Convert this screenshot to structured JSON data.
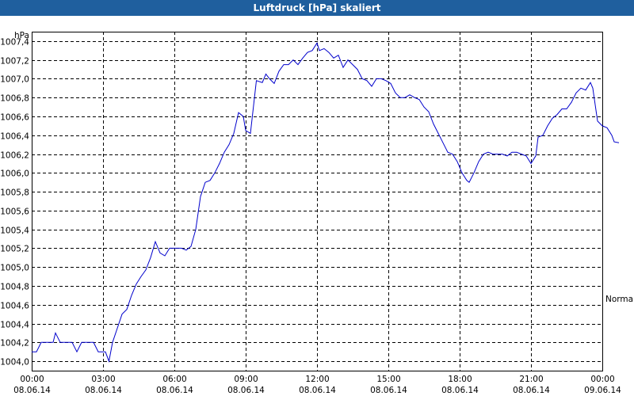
{
  "window": {
    "title": "Luftdruck [hPa] skaliert"
  },
  "chart_data": {
    "type": "line",
    "title": "Luftdruck [hPa] skaliert",
    "ylabel": "hPa",
    "series_label_right": "Normal",
    "ylim": [
      1003.9,
      1007.5
    ],
    "xlim_hours": [
      0,
      24
    ],
    "y_ticks": [
      "1004,0",
      "1004,2",
      "1004,4",
      "1004,6",
      "1004,8",
      "1005,0",
      "1005,2",
      "1005,4",
      "1005,6",
      "1005,8",
      "1006,0",
      "1006,2",
      "1006,4",
      "1006,6",
      "1006,8",
      "1007,0",
      "1007,2",
      "1007,4"
    ],
    "x_ticks": [
      {
        "time": "00:00",
        "date": "08.06.14"
      },
      {
        "time": "03:00",
        "date": "08.06.14"
      },
      {
        "time": "06:00",
        "date": "08.06.14"
      },
      {
        "time": "09:00",
        "date": "08.06.14"
      },
      {
        "time": "12:00",
        "date": "08.06.14"
      },
      {
        "time": "15:00",
        "date": "08.06.14"
      },
      {
        "time": "18:00",
        "date": "08.06.14"
      },
      {
        "time": "21:00",
        "date": "08.06.14"
      },
      {
        "time": "00:00",
        "date": "09.06.14"
      }
    ],
    "grid": true,
    "series": [
      {
        "color": "#0000cc",
        "points": [
          [
            0.0,
            1004.1
          ],
          [
            0.2,
            1004.1
          ],
          [
            0.4,
            1004.2
          ],
          [
            0.9,
            1004.2
          ],
          [
            1.0,
            1004.3
          ],
          [
            1.2,
            1004.2
          ],
          [
            1.7,
            1004.2
          ],
          [
            1.9,
            1004.1
          ],
          [
            2.1,
            1004.2
          ],
          [
            2.6,
            1004.2
          ],
          [
            2.8,
            1004.1
          ],
          [
            3.1,
            1004.1
          ],
          [
            3.25,
            1004.0
          ],
          [
            3.4,
            1004.2
          ],
          [
            3.6,
            1004.35
          ],
          [
            3.8,
            1004.5
          ],
          [
            4.0,
            1004.55
          ],
          [
            4.2,
            1004.7
          ],
          [
            4.4,
            1004.82
          ],
          [
            4.6,
            1004.9
          ],
          [
            4.8,
            1004.97
          ],
          [
            5.0,
            1005.1
          ],
          [
            5.2,
            1005.27
          ],
          [
            5.4,
            1005.15
          ],
          [
            5.6,
            1005.12
          ],
          [
            5.8,
            1005.2
          ],
          [
            6.0,
            1005.2
          ],
          [
            6.3,
            1005.2
          ],
          [
            6.5,
            1005.18
          ],
          [
            6.7,
            1005.22
          ],
          [
            6.9,
            1005.4
          ],
          [
            7.1,
            1005.75
          ],
          [
            7.3,
            1005.9
          ],
          [
            7.5,
            1005.92
          ],
          [
            7.7,
            1006.0
          ],
          [
            7.9,
            1006.1
          ],
          [
            8.1,
            1006.22
          ],
          [
            8.3,
            1006.3
          ],
          [
            8.5,
            1006.42
          ],
          [
            8.7,
            1006.64
          ],
          [
            8.9,
            1006.6
          ],
          [
            9.0,
            1006.45
          ],
          [
            9.2,
            1006.42
          ],
          [
            9.45,
            1006.98
          ],
          [
            9.7,
            1006.96
          ],
          [
            9.85,
            1007.05
          ],
          [
            10.0,
            1007.0
          ],
          [
            10.2,
            1006.95
          ],
          [
            10.4,
            1007.08
          ],
          [
            10.6,
            1007.15
          ],
          [
            10.8,
            1007.15
          ],
          [
            11.0,
            1007.2
          ],
          [
            11.2,
            1007.15
          ],
          [
            11.4,
            1007.22
          ],
          [
            11.6,
            1007.28
          ],
          [
            11.8,
            1007.3
          ],
          [
            12.0,
            1007.38
          ],
          [
            12.1,
            1007.3
          ],
          [
            12.3,
            1007.32
          ],
          [
            12.5,
            1007.28
          ],
          [
            12.7,
            1007.22
          ],
          [
            12.9,
            1007.25
          ],
          [
            13.1,
            1007.12
          ],
          [
            13.3,
            1007.2
          ],
          [
            13.5,
            1007.15
          ],
          [
            13.7,
            1007.1
          ],
          [
            13.9,
            1007.0
          ],
          [
            14.1,
            1006.98
          ],
          [
            14.3,
            1006.92
          ],
          [
            14.5,
            1007.0
          ],
          [
            14.7,
            1007.0
          ],
          [
            14.9,
            1006.98
          ],
          [
            15.1,
            1006.95
          ],
          [
            15.3,
            1006.85
          ],
          [
            15.5,
            1006.8
          ],
          [
            15.7,
            1006.8
          ],
          [
            15.9,
            1006.83
          ],
          [
            16.1,
            1006.8
          ],
          [
            16.3,
            1006.78
          ],
          [
            16.5,
            1006.7
          ],
          [
            16.7,
            1006.65
          ],
          [
            16.9,
            1006.52
          ],
          [
            17.1,
            1006.42
          ],
          [
            17.3,
            1006.32
          ],
          [
            17.5,
            1006.22
          ],
          [
            17.7,
            1006.2
          ],
          [
            17.9,
            1006.12
          ],
          [
            18.1,
            1006.0
          ],
          [
            18.3,
            1005.92
          ],
          [
            18.4,
            1005.9
          ],
          [
            18.6,
            1006.0
          ],
          [
            18.8,
            1006.12
          ],
          [
            19.0,
            1006.2
          ],
          [
            19.2,
            1006.22
          ],
          [
            19.4,
            1006.2
          ],
          [
            19.6,
            1006.2
          ],
          [
            19.8,
            1006.2
          ],
          [
            20.0,
            1006.18
          ],
          [
            20.2,
            1006.22
          ],
          [
            20.4,
            1006.22
          ],
          [
            20.6,
            1006.2
          ],
          [
            20.8,
            1006.18
          ],
          [
            21.0,
            1006.1
          ],
          [
            21.2,
            1006.18
          ],
          [
            21.3,
            1006.38
          ],
          [
            21.5,
            1006.4
          ],
          [
            21.7,
            1006.5
          ],
          [
            21.9,
            1006.58
          ],
          [
            22.1,
            1006.62
          ],
          [
            22.3,
            1006.68
          ],
          [
            22.5,
            1006.68
          ],
          [
            22.7,
            1006.75
          ],
          [
            22.9,
            1006.85
          ],
          [
            23.1,
            1006.9
          ],
          [
            23.3,
            1006.88
          ],
          [
            23.5,
            1006.96
          ],
          [
            23.6,
            1006.9
          ],
          [
            23.8,
            1006.55
          ],
          [
            24.0,
            1006.5
          ],
          [
            24.2,
            1006.48
          ],
          [
            24.4,
            1006.4
          ],
          [
            24.5,
            1006.33
          ],
          [
            24.7,
            1006.32
          ]
        ]
      }
    ]
  }
}
